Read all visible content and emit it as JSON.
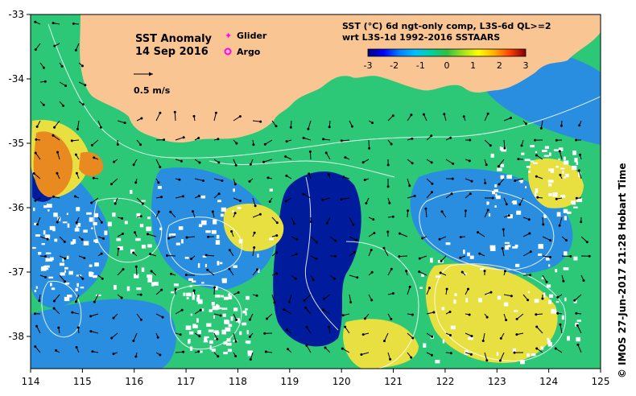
{
  "map": {
    "title": "SST Anomaly",
    "date": "14 Sep 2016",
    "scale_label": "0.5 m/s",
    "legend": {
      "glider": "Glider",
      "argo": "Argo",
      "glider_color": "#ff00ff",
      "argo_color": "#ff00ff"
    },
    "colorbar": {
      "title_line1": "SST (°C) 6d ngt-only comp, L3S-6d QL>=2",
      "title_line2": "wrt L3S-1d 1992-2016 SSTAARS",
      "ticks": [
        "-3",
        "-2",
        "-1",
        "0",
        "1",
        "2",
        "3"
      ],
      "colors": [
        "#000080",
        "#0000ff",
        "#0080ff",
        "#00c0ff",
        "#00d0a0",
        "#30c040",
        "#a0e020",
        "#ffff00",
        "#ffb000",
        "#ff4000",
        "#800000"
      ]
    },
    "credit": "© IMOS 27-Jun-2017 21:28 Hobart Time",
    "x_ticks": [
      "114",
      "115",
      "116",
      "117",
      "118",
      "119",
      "120",
      "121",
      "122",
      "123",
      "124",
      "125"
    ],
    "y_ticks": [
      "-33",
      "-34",
      "-35",
      "-36",
      "-37",
      "-38"
    ],
    "land_color": "#f9c593",
    "field_colors": {
      "background": "#2cc878",
      "cold": "#001c9c",
      "cool": "#2a8ee0",
      "warm": "#e8e040",
      "hot": "#e88a20",
      "missing": "#ffffff"
    }
  }
}
